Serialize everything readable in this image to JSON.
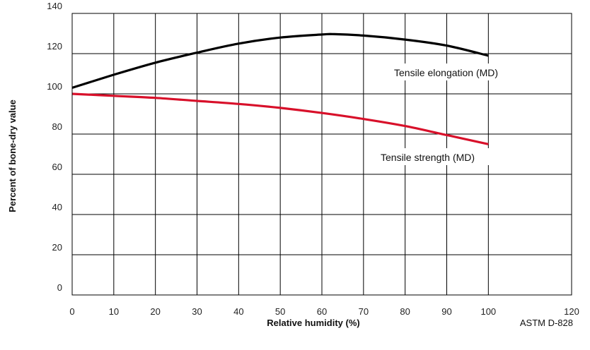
{
  "chart_data": {
    "type": "line",
    "xlabel": "Relative humidity (%)",
    "ylabel": "Percent of bone-dry value",
    "xlim": [
      0,
      120
    ],
    "ylim": [
      0,
      140
    ],
    "x_ticks": [
      "0",
      "10",
      "20",
      "30",
      "40",
      "50",
      "60",
      "70",
      "80",
      "90",
      "100",
      "120"
    ],
    "y_ticks": [
      "0",
      "20",
      "40",
      "60",
      "80",
      "100",
      "120",
      "140"
    ],
    "grid": true,
    "series": [
      {
        "name": "Tensile elongation (MD)",
        "color": "#000000",
        "x": [
          0,
          10,
          20,
          30,
          40,
          50,
          60,
          63,
          70,
          80,
          90,
          100
        ],
        "y": [
          103,
          109.5,
          115.5,
          120.5,
          125,
          128,
          129.5,
          129.7,
          129,
          127,
          124,
          119
        ]
      },
      {
        "name": "Tensile strength (MD)",
        "color": "#d8102a",
        "x": [
          0,
          10,
          20,
          30,
          40,
          50,
          60,
          70,
          80,
          90,
          100
        ],
        "y": [
          100,
          99,
          98,
          96.5,
          95,
          93,
          90.5,
          87.5,
          84,
          79.5,
          75
        ]
      }
    ],
    "source_note": "ASTM D-828"
  }
}
